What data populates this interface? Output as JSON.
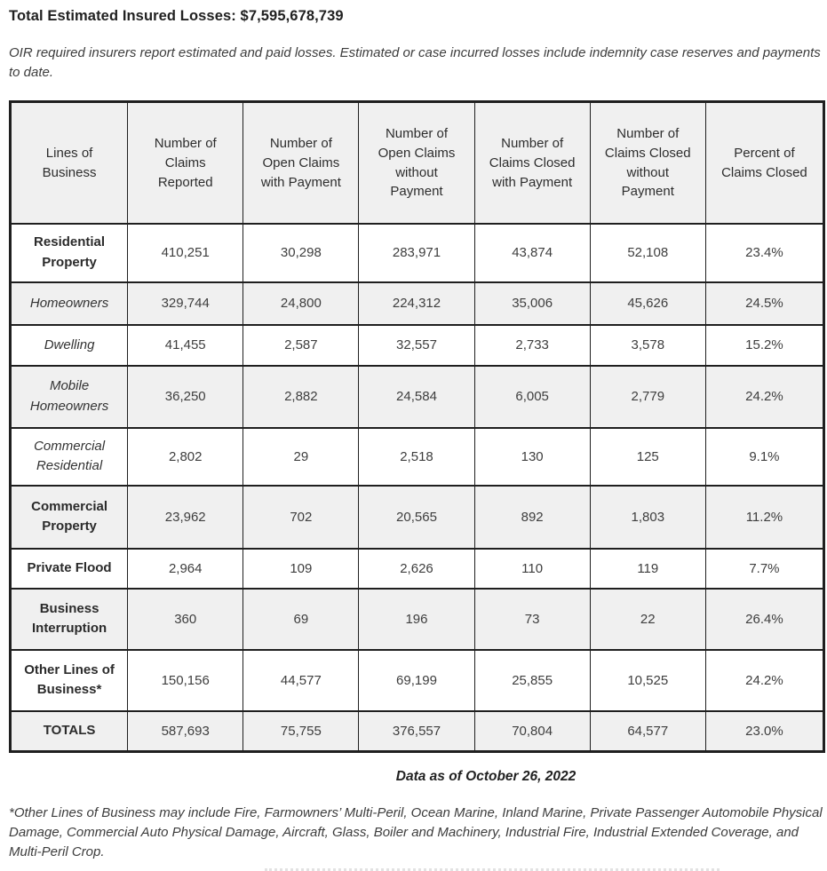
{
  "page": {
    "title": "Total Estimated Insured Losses: $7,595,678,739",
    "intro": "OIR required insurers report estimated and paid losses. Estimated or case incurred losses include indemnity case reserves and payments to date.",
    "data_as_of": "Data as of October 26, 2022",
    "footnote": "*Other Lines of Business may include Fire, Farmowners’ Multi-Peril, Ocean Marine, Inland Marine, Private Passenger Automobile Physical Damage, Commercial Auto Physical Damage, Aircraft, Glass, Boiler and Machinery, Industrial Fire, Industrial Extended Coverage, and Multi-Peril Crop."
  },
  "table": {
    "headers": [
      "Lines of Business",
      "Number of Claims Reported",
      "Number of Open Claims with Payment",
      "Number of Open Claims without Payment",
      "Number of Claims Closed with Payment",
      "Number of Claims Closed without Payment",
      "Percent of Claims Closed"
    ],
    "rows": [
      {
        "name": "Residential Property",
        "values": [
          "410,251",
          "30,298",
          "283,971",
          "43,874",
          "52,108",
          "23.4%"
        ]
      },
      {
        "name": "Homeowners",
        "values": [
          "329,744",
          "24,800",
          "224,312",
          "35,006",
          "45,626",
          "24.5%"
        ]
      },
      {
        "name": "Dwelling",
        "values": [
          "41,455",
          "2,587",
          "32,557",
          "2,733",
          "3,578",
          "15.2%"
        ]
      },
      {
        "name": "Mobile Homeowners",
        "values": [
          "36,250",
          "2,882",
          "24,584",
          "6,005",
          "2,779",
          "24.2%"
        ]
      },
      {
        "name": "Commercial Residential",
        "values": [
          "2,802",
          "29",
          "2,518",
          "130",
          "125",
          "9.1%"
        ]
      },
      {
        "name": "Commercial Property",
        "values": [
          "23,962",
          "702",
          "20,565",
          "892",
          "1,803",
          "11.2%"
        ]
      },
      {
        "name": "Private Flood",
        "values": [
          "2,964",
          "109",
          "2,626",
          "110",
          "119",
          "7.7%"
        ]
      },
      {
        "name": "Business Interruption",
        "values": [
          "360",
          "69",
          "196",
          "73",
          "22",
          "26.4%"
        ]
      },
      {
        "name": "Other Lines of Business*",
        "values": [
          "150,156",
          "44,577",
          "69,199",
          "25,855",
          "10,525",
          "24.2%"
        ]
      },
      {
        "name": "TOTALS",
        "values": [
          "587,693",
          "75,755",
          "376,557",
          "70,804",
          "64,577",
          "23.0%"
        ]
      }
    ]
  }
}
